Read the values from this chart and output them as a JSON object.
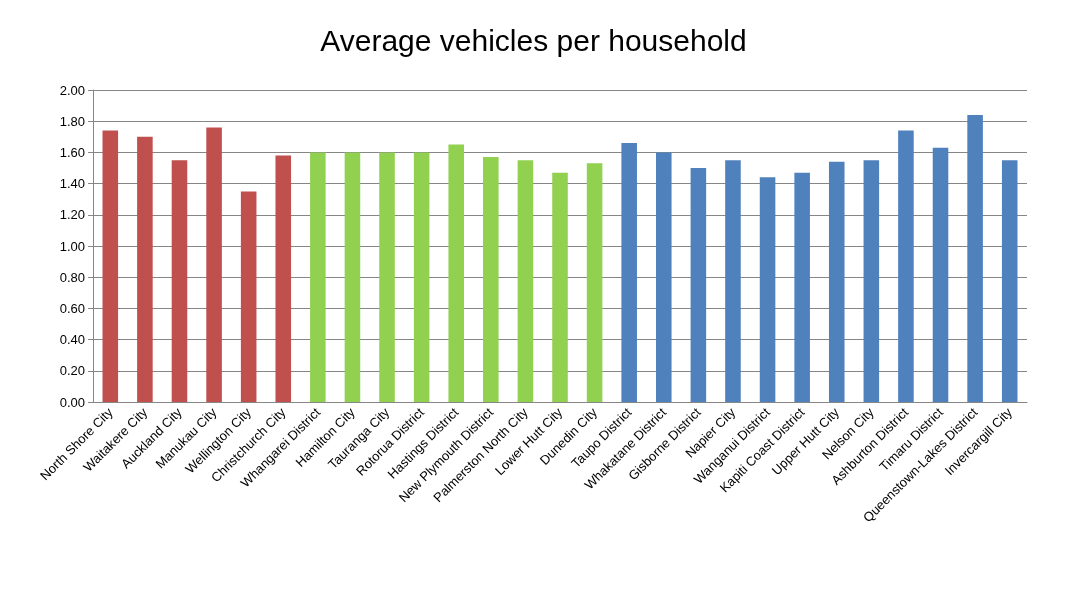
{
  "chart_data": {
    "type": "bar",
    "title": "Average vehicles per household",
    "categories": [
      "North Shore City",
      "Waitakere City",
      "Auckland City",
      "Manukau City",
      "Wellington City",
      "Christchurch City",
      "Whangarei District",
      "Hamilton City",
      "Tauranga City",
      "Rotorua District",
      "Hastings District",
      "New Plymouth District",
      "Palmerston North City",
      "Lower Hutt City",
      "Dunedin City",
      "Taupo District",
      "Whakatane District",
      "Gisborne District",
      "Napier City",
      "Wanganui District",
      "Kapiti Coast District",
      "Upper Hutt City",
      "Nelson City",
      "Ashburton District",
      "Timaru District",
      "Queenstown-Lakes District",
      "Invercargill City"
    ],
    "values": [
      1.74,
      1.7,
      1.55,
      1.76,
      1.35,
      1.58,
      1.6,
      1.6,
      1.6,
      1.6,
      1.65,
      1.57,
      1.55,
      1.47,
      1.53,
      1.66,
      1.6,
      1.5,
      1.55,
      1.44,
      1.47,
      1.54,
      1.55,
      1.74,
      1.63,
      1.84,
      1.55
    ],
    "colors": [
      "#c0504d",
      "#c0504d",
      "#c0504d",
      "#c0504d",
      "#c0504d",
      "#c0504d",
      "#92d050",
      "#92d050",
      "#92d050",
      "#92d050",
      "#92d050",
      "#92d050",
      "#92d050",
      "#92d050",
      "#92d050",
      "#4f81bd",
      "#4f81bd",
      "#4f81bd",
      "#4f81bd",
      "#4f81bd",
      "#4f81bd",
      "#4f81bd",
      "#4f81bd",
      "#4f81bd",
      "#4f81bd",
      "#4f81bd",
      "#4f81bd"
    ],
    "ylim": [
      0,
      2
    ],
    "yticks": [
      {
        "value": 0,
        "label": "0.00"
      },
      {
        "value": 0.2,
        "label": "0.20"
      },
      {
        "value": 0.4,
        "label": "0.40"
      },
      {
        "value": 0.6,
        "label": "0.60"
      },
      {
        "value": 0.8,
        "label": "0.80"
      },
      {
        "value": 1,
        "label": "1.00"
      },
      {
        "value": 1.2,
        "label": "1.20"
      },
      {
        "value": 1.4,
        "label": "1.40"
      },
      {
        "value": 1.6,
        "label": "1.60"
      },
      {
        "value": 1.8,
        "label": "1.80"
      },
      {
        "value": 2,
        "label": "2.00"
      }
    ],
    "grid": "y"
  }
}
